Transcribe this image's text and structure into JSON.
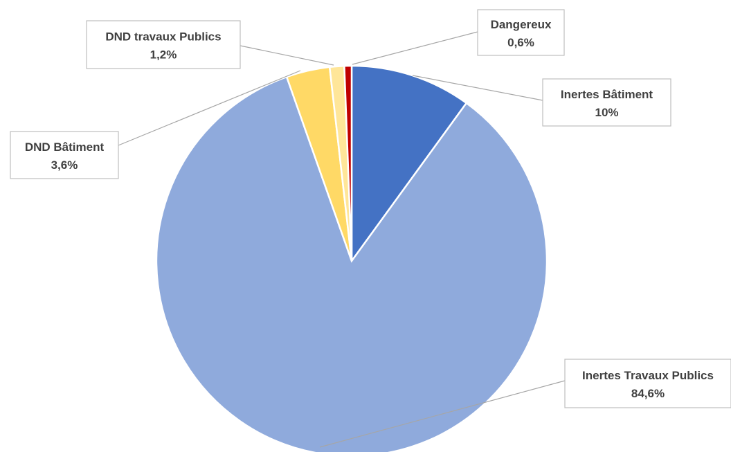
{
  "chart_data": {
    "type": "pie",
    "slices": [
      {
        "name": "Inertes Bâtiment",
        "value": 10.0,
        "label": "10%",
        "color": "#4472c4"
      },
      {
        "name": "Inertes Travaux Publics",
        "value": 84.6,
        "label": "84,6%",
        "color": "#8faadc"
      },
      {
        "name": "DND Bâtiment",
        "value": 3.6,
        "label": "3,6%",
        "color": "#ffd966"
      },
      {
        "name": "DND travaux Publics",
        "value": 1.2,
        "label": "1,2%",
        "color": "#ffe699"
      },
      {
        "name": "Dangereux",
        "value": 0.6,
        "label": "0,6%",
        "color": "#c00000"
      }
    ],
    "start_angle_deg": 0,
    "direction": "clockwise",
    "legend": "none",
    "data_labels": "callout-with-leader-lines"
  }
}
